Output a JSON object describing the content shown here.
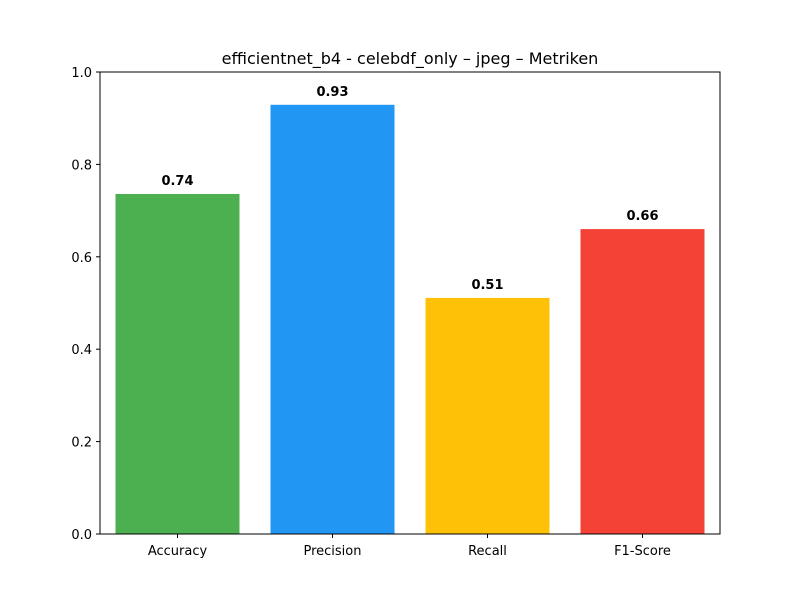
{
  "chart_data": {
    "type": "bar",
    "title": "efficientnet_b4 - celebdf_only – jpeg – Metriken",
    "xlabel": "",
    "ylabel": "",
    "categories": [
      "Accuracy",
      "Precision",
      "Recall",
      "F1-Score"
    ],
    "values": [
      0.736,
      0.929,
      0.511,
      0.66
    ],
    "data_labels": [
      "0.74",
      "0.93",
      "0.51",
      "0.66"
    ],
    "colors": [
      "#4caf50",
      "#2196f3",
      "#ffc107",
      "#f44336"
    ],
    "ylim": [
      0,
      1.0
    ],
    "yticks": [
      0.0,
      0.2,
      0.4,
      0.6,
      0.8,
      1.0
    ],
    "ytick_labels": [
      "0.0",
      "0.2",
      "0.4",
      "0.6",
      "0.8",
      "1.0"
    ],
    "grid": false,
    "legend": "none"
  }
}
